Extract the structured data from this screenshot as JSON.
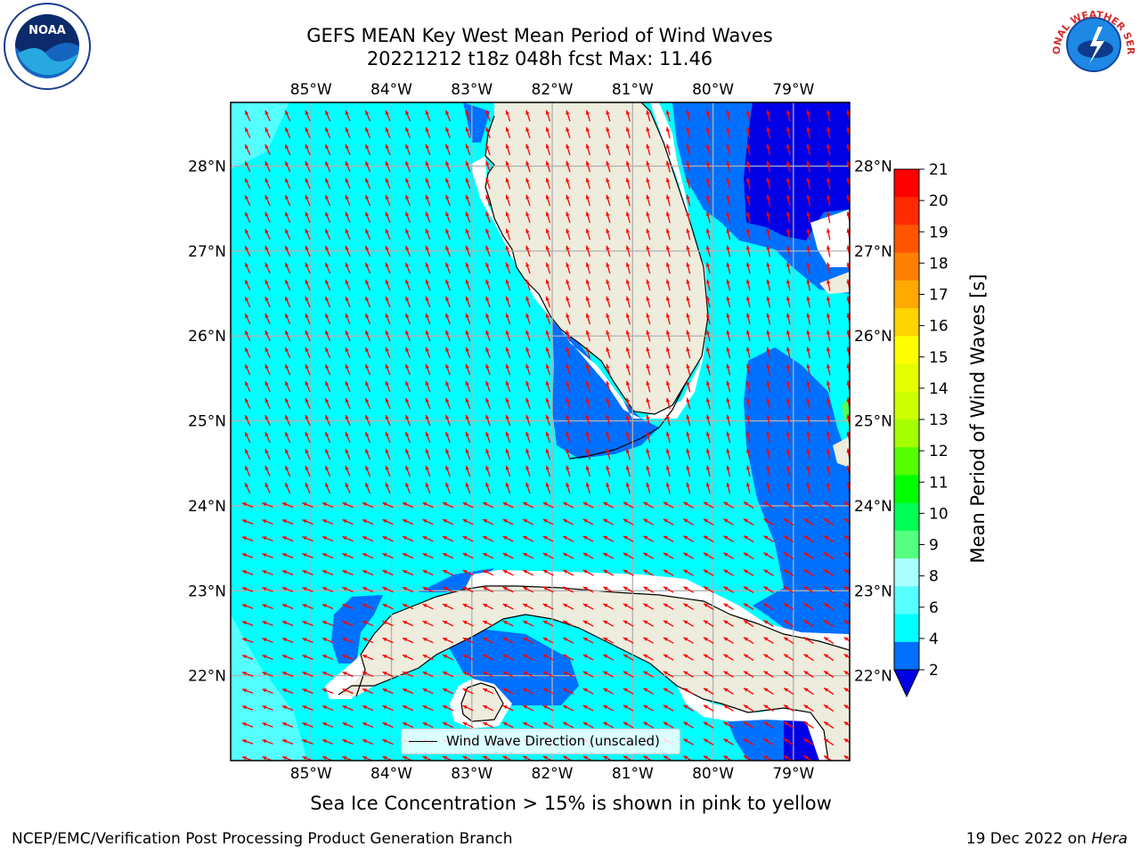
{
  "title": {
    "line1": "GEFS MEAN Key West Mean Period of Wind Waves",
    "line2": "20221212 t18z 048h fcst   Max: 11.46"
  },
  "map": {
    "lon_ticks": [
      "85°W",
      "84°W",
      "83°W",
      "82°W",
      "81°W",
      "80°W",
      "79°W"
    ],
    "lat_ticks": [
      "28°N",
      "27°N",
      "26°N",
      "25°N",
      "24°N",
      "23°N",
      "22°N"
    ],
    "extent": {
      "lon_min": -86.0,
      "lon_max": -78.3,
      "lat_min": 21.0,
      "lat_max": 28.75
    },
    "colors": {
      "land": "#eeecdc",
      "cyan_4_6": "#00ffff",
      "blue_2_4": "#0070ff",
      "dark_blue_lt2": "#0000e6",
      "light_cyan_6_8": "#55ffff",
      "arrow": "#ff0000",
      "grid": "#b0b0b0"
    },
    "legend_label": "Wind Wave Direction (unscaled)"
  },
  "colorbar": {
    "title": "Mean Period of Wind Waves [s]",
    "labels": [
      "21",
      "20",
      "19",
      "18",
      "17",
      "16",
      "15",
      "14",
      "13",
      "12",
      "11",
      "10",
      "9",
      "8",
      "6",
      "4",
      "2"
    ],
    "colors": [
      "#ff0000",
      "#ff2a00",
      "#ff5500",
      "#ff7f00",
      "#ffaa00",
      "#ffd400",
      "#ffff00",
      "#e6ff00",
      "#ccff00",
      "#a5ff00",
      "#55ff00",
      "#00ff00",
      "#00ff55",
      "#55ff80",
      "#aaffff",
      "#55ffff",
      "#00ffff",
      "#0070ff"
    ],
    "extend_color": "#0000e6"
  },
  "notes": {
    "sea_ice": "Sea Ice Concentration > 15% is shown in pink to yellow",
    "footer_left": "NCEP/EMC/Verification Post Processing Product Generation Branch",
    "footer_right_date": "19 Dec 2022 on",
    "footer_right_host": "Hera"
  },
  "logos": {
    "noaa_text": "NOAA",
    "nws_text": "NATIONAL WEATHER SERVICE"
  }
}
